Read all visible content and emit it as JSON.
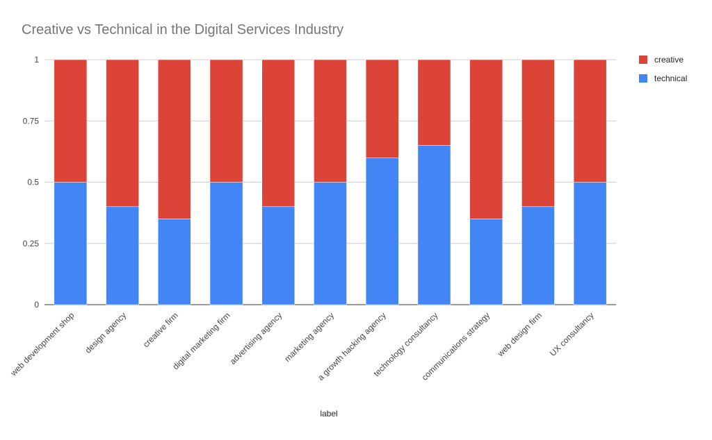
{
  "chart_data": {
    "type": "bar",
    "stacked": true,
    "title": "Creative vs Technical in the Digital Services Industry",
    "xlabel": "label",
    "ylabel": "",
    "ylim": [
      0,
      1
    ],
    "yticks": [
      "0",
      "0.25",
      "0.5",
      "0.75",
      "1"
    ],
    "grid": true,
    "legend_position": "right",
    "categories": [
      "web development shop",
      "design agency",
      "creative firm",
      "digital marketing firm",
      "advertising agency",
      "marketing agency",
      "a growth hacking agency",
      "technology consultancy",
      "communications strategy",
      "web design firm",
      "UX consultancy"
    ],
    "series": [
      {
        "name": "technical",
        "color": "#4285F4",
        "values": [
          0.5,
          0.4,
          0.35,
          0.5,
          0.4,
          0.5,
          0.6,
          0.65,
          0.35,
          0.4,
          0.5
        ]
      },
      {
        "name": "creative",
        "color": "#DB4437",
        "values": [
          0.5,
          0.6,
          0.65,
          0.5,
          0.6,
          0.5,
          0.4,
          0.35,
          0.65,
          0.6,
          0.5
        ]
      }
    ],
    "legend_order": [
      "creative",
      "technical"
    ]
  }
}
